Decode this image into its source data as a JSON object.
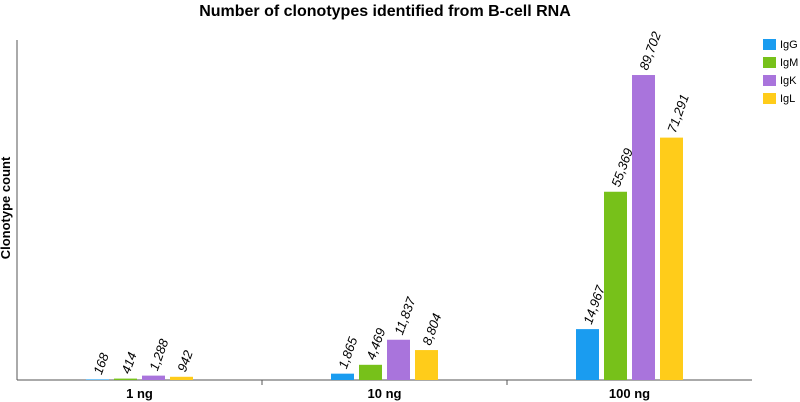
{
  "chart_data": {
    "type": "bar",
    "title": "Number of clonotypes identified from B-cell RNA",
    "xlabel": "",
    "ylabel": "Clonotype count",
    "categories": [
      "1 ng",
      "10 ng",
      "100 ng"
    ],
    "series": [
      {
        "name": "IgG",
        "color": "#1a9cf0",
        "values": [
          168,
          1865,
          14967
        ],
        "labels": [
          "168",
          "1,865",
          "14,967"
        ]
      },
      {
        "name": "IgM",
        "color": "#77c11a",
        "values": [
          414,
          4469,
          55369
        ],
        "labels": [
          "414",
          "4,469",
          "55,369"
        ]
      },
      {
        "name": "IgK",
        "color": "#a974dc",
        "values": [
          1288,
          11837,
          89702
        ],
        "labels": [
          "1,288",
          "11,837",
          "89,702"
        ]
      },
      {
        "name": "IgL",
        "color": "#ffcc1a",
        "values": [
          942,
          8804,
          71291
        ],
        "labels": [
          "942",
          "8,804",
          "71,291"
        ]
      }
    ],
    "ylim": [
      0,
      100000
    ],
    "grid": false,
    "legend_position": "top-right"
  }
}
